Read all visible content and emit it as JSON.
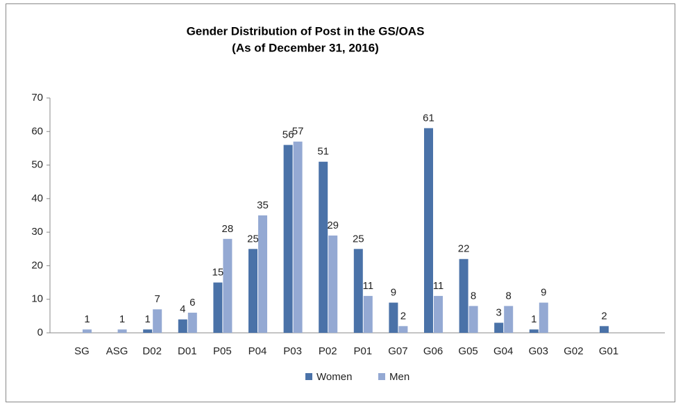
{
  "chart_data": {
    "type": "bar",
    "title": "Gender Distribution  of Post in the GS/OAS",
    "subtitle": "(As of December 31, 2016)",
    "categories": [
      "SG",
      "ASG",
      "D02",
      "D01",
      "P05",
      "P04",
      "P03",
      "P02",
      "P01",
      "G07",
      "G06",
      "G05",
      "G04",
      "G03",
      "G02",
      "G01",
      null
    ],
    "series": [
      {
        "name": "Women",
        "color": "#4a72a8",
        "values": [
          0,
          0,
          1,
          4,
          15,
          25,
          56,
          51,
          25,
          9,
          61,
          22,
          3,
          1,
          0,
          2,
          null
        ]
      },
      {
        "name": "Men",
        "color": "#94a9d3",
        "values": [
          1,
          1,
          7,
          6,
          28,
          35,
          57,
          29,
          11,
          2,
          11,
          8,
          8,
          9,
          0,
          0,
          null
        ]
      }
    ],
    "ylim": [
      0,
      70
    ],
    "yticks": [
      0,
      10,
      20,
      30,
      40,
      50,
      60,
      70
    ],
    "grid": false,
    "legend": "bottom"
  }
}
